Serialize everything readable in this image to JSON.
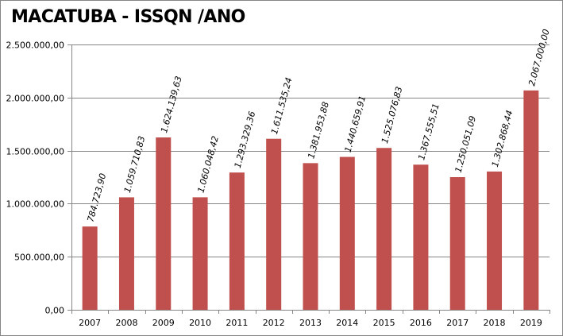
{
  "chart_data": {
    "type": "bar",
    "title": "MACATUBA - ISSQN /ANO",
    "xlabel": "",
    "ylabel": "",
    "categories": [
      "2007",
      "2008",
      "2009",
      "2010",
      "2011",
      "2012",
      "2013",
      "2014",
      "2015",
      "2016",
      "2017",
      "2018",
      "2019"
    ],
    "values": [
      784723.9,
      1059710.83,
      1624139.63,
      1060048.42,
      1293329.36,
      1611535.24,
      1381953.88,
      1440659.91,
      1525076.83,
      1367555.51,
      1250051.09,
      1302868.44,
      2067000.0
    ],
    "value_labels": [
      "784.723,90",
      "1.059.710,83",
      "1.624.139,63",
      "1.060.048,42",
      "1.293.329,36",
      "1.611.535,24",
      "1.381.953,88",
      "1.440.659,91",
      "1.525.076,83",
      "1.367.555,51",
      "1.250.051,09",
      "1.302.868,44",
      "2.067.000,00"
    ],
    "ylim": [
      0,
      2500000
    ],
    "yticks": [
      0,
      500000,
      1000000,
      1500000,
      2000000,
      2500000
    ],
    "ytick_labels": [
      "0,00",
      "500.000,00",
      "1.000.000,00",
      "1.500.000,00",
      "2.000.000,00",
      "2.500.000,00"
    ],
    "bar_color": "#C0504D",
    "grid": "horizontal",
    "legend": "none"
  }
}
